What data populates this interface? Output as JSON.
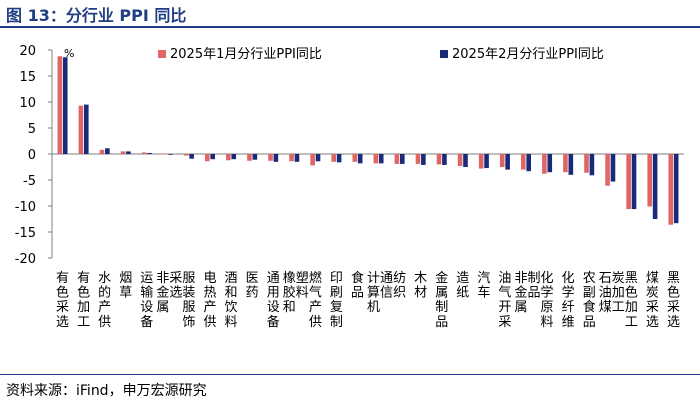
{
  "figure": {
    "title": "图 13：分行业 PPI 同比",
    "source": "资料来源：iFind，申万宏源研究"
  },
  "chart_data": {
    "type": "bar",
    "unit_label": "%",
    "ylim": [
      -20,
      20
    ],
    "yticks": [
      20,
      15,
      10,
      5,
      0,
      -5,
      -10,
      -15,
      -20
    ],
    "grid": false,
    "legend_position": "top",
    "categories": [
      "有色采选",
      "有色加工",
      "水的产供",
      "烟草",
      "运输设备",
      "非金属采选",
      "服装服饰",
      "电热产供",
      "酒和饮料",
      "医药",
      "通用设备",
      "橡胶和塑料",
      "燃气产供",
      "印刷复制",
      "食品",
      "计算机通信",
      "纺织",
      "木材",
      "金属制品",
      "造纸",
      "汽车",
      "油气开采",
      "非金属制品",
      "化学原料",
      "化学纤维",
      "农副食品",
      "石油煤炭加工",
      "黑色加工",
      "煤炭采选",
      "黑色采选"
    ],
    "series": [
      {
        "name": "2025年1月分行业PPI同比",
        "color": "#e06666",
        "values": [
          18.8,
          9.3,
          0.8,
          0.5,
          0.3,
          0.1,
          -0.3,
          -1.4,
          -1.2,
          -1.3,
          -1.3,
          -1.4,
          -2.2,
          -1.5,
          -1.5,
          -1.8,
          -1.9,
          -1.9,
          -2.0,
          -2.3,
          -2.8,
          -2.5,
          -3.0,
          -3.8,
          -3.5,
          -3.6,
          -6.1,
          -10.6,
          -10.1,
          -13.6
        ]
      },
      {
        "name": "2025年2月分行业PPI同比",
        "color": "#1a2a7a",
        "values": [
          18.6,
          9.5,
          1.1,
          0.5,
          0.2,
          -0.1,
          -0.9,
          -1.0,
          -1.0,
          -1.1,
          -1.5,
          -1.5,
          -1.4,
          -1.6,
          -1.8,
          -1.8,
          -1.9,
          -2.1,
          -2.1,
          -2.5,
          -2.7,
          -3.0,
          -3.3,
          -3.5,
          -4.0,
          -4.1,
          -5.3,
          -10.6,
          -12.5,
          -13.3
        ]
      }
    ]
  }
}
